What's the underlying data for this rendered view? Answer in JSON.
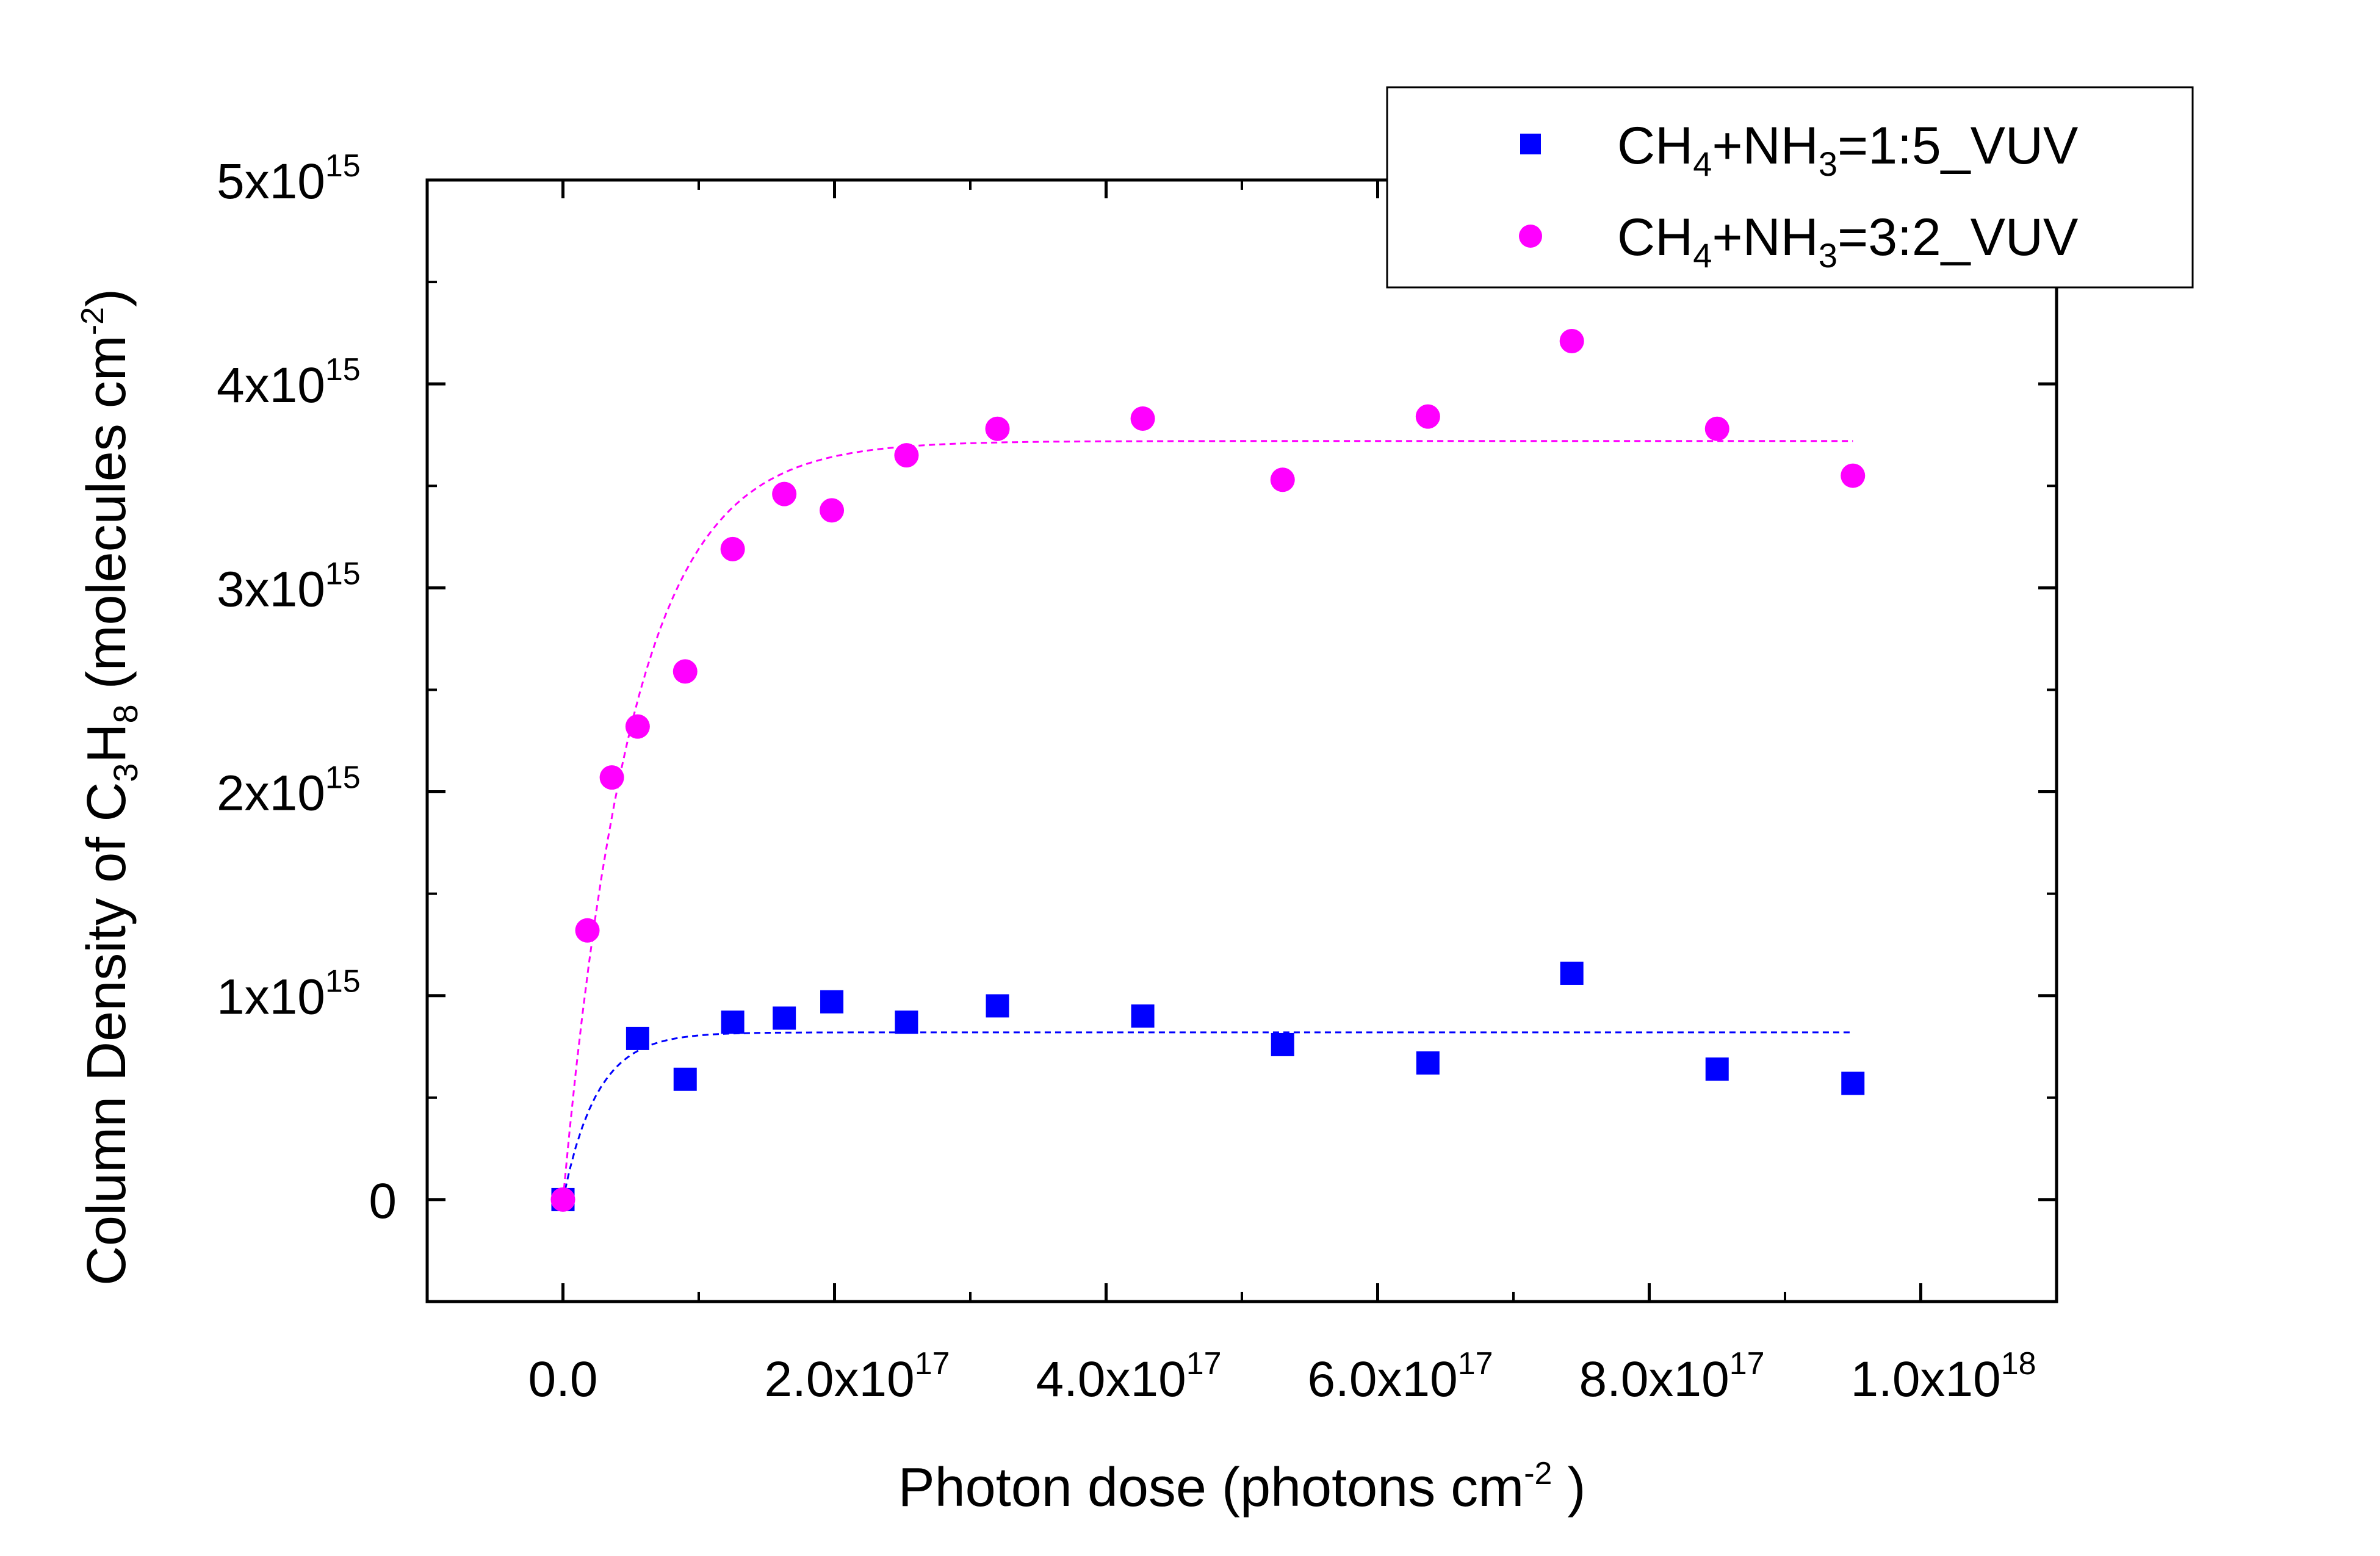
{
  "chart_data": {
    "type": "scatter",
    "xlabel": "Photon dose (photons cm-2 )",
    "ylabel": "Column Density of C3H8 (molecules cm-2)",
    "xlim": [
      -1e+17,
      1.1e+18
    ],
    "ylim": [
      -500000000000000.0,
      5000000000000000.0
    ],
    "x_ticks": [
      {
        "value": 0,
        "mantissa": "0.0",
        "exp": ""
      },
      {
        "value": 2e+17,
        "mantissa": "2.0x10",
        "exp": "17"
      },
      {
        "value": 4e+17,
        "mantissa": "4.0x10",
        "exp": "17"
      },
      {
        "value": 6e+17,
        "mantissa": "6.0x10",
        "exp": "17"
      },
      {
        "value": 8e+17,
        "mantissa": "8.0x10",
        "exp": "17"
      },
      {
        "value": 1e+18,
        "mantissa": "1.0x10",
        "exp": "18"
      }
    ],
    "y_ticks": [
      {
        "value": 0,
        "mantissa": "0",
        "exp": ""
      },
      {
        "value": 1000000000000000.0,
        "mantissa": "1x10",
        "exp": "15"
      },
      {
        "value": 2000000000000000.0,
        "mantissa": "2x10",
        "exp": "15"
      },
      {
        "value": 3000000000000000.0,
        "mantissa": "3x10",
        "exp": "15"
      },
      {
        "value": 4000000000000000.0,
        "mantissa": "4x10",
        "exp": "15"
      },
      {
        "value": 5000000000000000.0,
        "mantissa": "5x10",
        "exp": "15"
      }
    ],
    "grid": false,
    "legend_position": "top-right",
    "series": [
      {
        "name": "CH4+NH3=1:5_VUV",
        "marker": "square",
        "color": "#0000ff",
        "x": [
          0,
          5.5e+16,
          9e+16,
          1.25e+17,
          1.63e+17,
          1.98e+17,
          2.53e+17,
          3.2e+17,
          4.27e+17,
          5.3e+17,
          6.37e+17,
          7.43e+17,
          8.5e+17,
          9.5e+17
        ],
        "y": [
          0,
          790000000000000.0,
          590000000000000.0,
          870000000000000.0,
          890000000000000.0,
          970000000000000.0,
          870000000000000.0,
          950000000000000.0,
          900000000000000.0,
          760000000000000.0,
          670000000000000.0,
          1110000000000000.0,
          640000000000000.0,
          570000000000000.0
        ],
        "fit": {
          "type": "exponential",
          "plateau": 820000000000000.0,
          "rate": 4e-17,
          "x_range": [
            0,
            9.5e+17
          ]
        }
      },
      {
        "name": "CH4+NH3=3:2_VUV",
        "marker": "circle",
        "color": "#ff00ff",
        "x": [
          0,
          1.8e+16,
          3.6e+16,
          5.5e+16,
          9e+16,
          1.25e+17,
          1.63e+17,
          1.98e+17,
          2.53e+17,
          3.2e+17,
          4.27e+17,
          5.3e+17,
          6.37e+17,
          7.43e+17,
          8.5e+17,
          9.5e+17
        ],
        "y": [
          0,
          1320000000000000.0,
          2070000000000000.0,
          2320000000000000.0,
          2590000000000000.0,
          3190000000000000.0,
          3460000000000000.0,
          3380000000000000.0,
          3650000000000000.0,
          3780000000000000.0,
          3830000000000000.0,
          3530000000000000.0,
          3840000000000000.0,
          4210000000000000.0,
          3780000000000000.0,
          3550000000000000.0
        ],
        "fit": {
          "type": "exponential",
          "plateau": 3720000000000000.0,
          "rate": 1.95e-17,
          "x_range": [
            0,
            9.5e+17
          ]
        }
      }
    ],
    "legend": [
      {
        "prefix": "CH",
        "sub1": "4",
        "mid": "+NH",
        "sub2": "3",
        "suffix": "=1:5_VUV"
      },
      {
        "prefix": "CH",
        "sub1": "4",
        "mid": "+NH",
        "sub2": "3",
        "suffix": "=3:2_VUV"
      }
    ]
  }
}
